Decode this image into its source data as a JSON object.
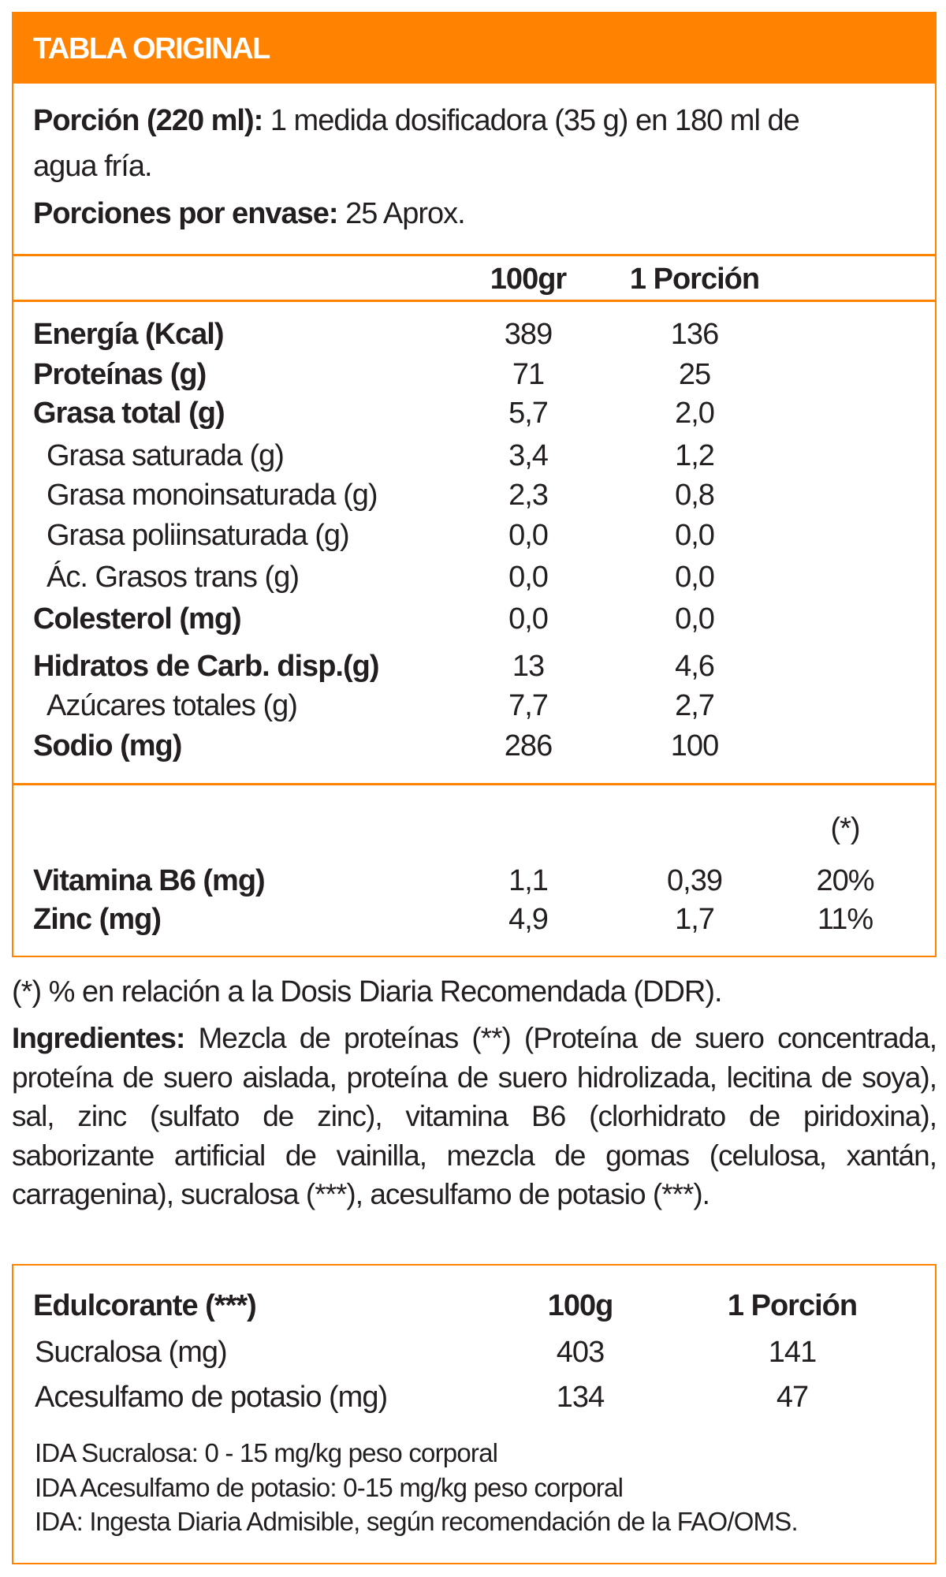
{
  "title": "TABLA ORIGINAL",
  "serving": {
    "label": "Porción (220 ml):",
    "value": "1 medida dosificadora (35 g) en 180 ml de agua fría."
  },
  "servings_per_container": {
    "label": "Porciones por envase:",
    "value": "25 Aprox."
  },
  "columns": [
    "100gr",
    "1 Porción"
  ],
  "rows": [
    {
      "name": "Energía (Kcal)",
      "bold": true,
      "per100": "389",
      "portion": "136"
    },
    {
      "name": "Proteínas (g)",
      "bold": true,
      "per100": "71",
      "portion": "25"
    },
    {
      "name": "Grasa total (g)",
      "bold": true,
      "per100": "5,7",
      "portion": "2,0"
    },
    {
      "name": "Grasa saturada (g)",
      "bold": false,
      "per100": "3,4",
      "portion": "1,2"
    },
    {
      "name": "Grasa monoinsaturada (g)",
      "bold": false,
      "per100": "2,3",
      "portion": "0,8"
    },
    {
      "name": "Grasa poliinsaturada (g)",
      "bold": false,
      "per100": "0,0",
      "portion": "0,0"
    },
    {
      "name": "Ác. Grasos trans (g)",
      "bold": false,
      "per100": "0,0",
      "portion": "0,0"
    },
    {
      "name": "Colesterol (mg)",
      "bold": true,
      "per100": "0,0",
      "portion": "0,0"
    },
    {
      "name": "Hidratos de Carb. disp.(g)",
      "bold": true,
      "per100": "13",
      "portion": "4,6"
    },
    {
      "name": "Azúcares totales (g)",
      "bold": false,
      "per100": "7,7",
      "portion": "2,7"
    },
    {
      "name": "Sodio (mg)",
      "bold": true,
      "per100": "286",
      "portion": "100"
    }
  ],
  "dri_header": "(*)",
  "micros": [
    {
      "name": "Vitamina B6 (mg)",
      "per100": "1,1",
      "portion": "0,39",
      "dri": "20%"
    },
    {
      "name": "Zinc (mg)",
      "per100": "4,9",
      "portion": "1,7",
      "dri": "11%"
    }
  ],
  "footnote": "(*) % en relación a la Dosis Diaria Recomendada (DDR).",
  "ingredients": {
    "label": "Ingredientes:",
    "text": "Mezcla de proteínas (**) (Proteína de suero concentrada, proteína de suero aislada, proteína de suero hidrolizada, lecitina de soya), sal, zinc (sulfato de zinc), vitamina B6 (clorhidrato de piridoxina), saborizante artificial de vainilla, mezcla de gomas (celulosa, xantán, carragenina), sucralosa (***), acesulfamo de potasio (***)."
  },
  "sweetener": {
    "header": "Edulcorante (***)",
    "columns": [
      "100g",
      "1 Porción"
    ],
    "rows": [
      {
        "name": "Sucralosa (mg)",
        "per100": "403",
        "portion": "141"
      },
      {
        "name": "Acesulfamo de potasio (mg)",
        "per100": "134",
        "portion": "47"
      }
    ],
    "notes": [
      "IDA Sucralosa: 0 - 15 mg/kg peso corporal",
      "IDA Acesulfamo de potasio: 0-15 mg/kg peso corporal",
      "IDA: Ingesta Diaria Admisible, según recomendación de la FAO/OMS."
    ]
  },
  "colors": {
    "accent": "#ff8200",
    "text": "#231f20"
  }
}
